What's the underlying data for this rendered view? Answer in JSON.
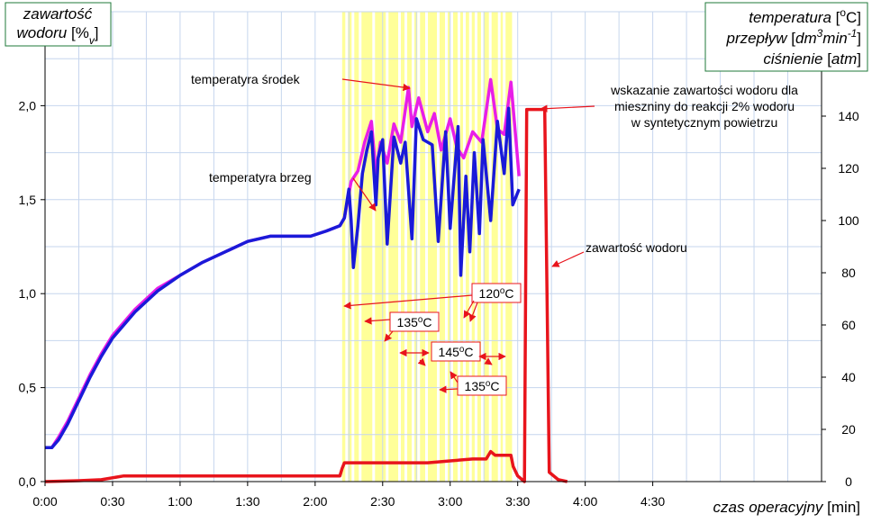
{
  "chart_data": {
    "type": "line",
    "xlim": [
      0,
      345
    ],
    "xticks": [
      {
        "value": 0,
        "label": "0:00"
      },
      {
        "value": 30,
        "label": "0:30"
      },
      {
        "value": 60,
        "label": "1:00"
      },
      {
        "value": 90,
        "label": "1:30"
      },
      {
        "value": 120,
        "label": "2:00"
      },
      {
        "value": 150,
        "label": "2:30"
      },
      {
        "value": 180,
        "label": "3:00"
      },
      {
        "value": 210,
        "label": "3:30"
      },
      {
        "value": 240,
        "label": "4:00"
      },
      {
        "value": 270,
        "label": "4:30"
      }
    ],
    "xminorticks": [
      15,
      45,
      75,
      105,
      135,
      165,
      195,
      225,
      255,
      285,
      300,
      315,
      330,
      345
    ],
    "ylim": [
      0,
      2.5
    ],
    "yticks": [
      {
        "value": 0,
        "label": "0,0"
      },
      {
        "value": 0.5,
        "label": "0,5"
      },
      {
        "value": 1,
        "label": "1,0"
      },
      {
        "value": 1.5,
        "label": "1,5"
      },
      {
        "value": 2,
        "label": "2,0"
      }
    ],
    "yminorticks": [
      0.25,
      0.75,
      1.25,
      1.75,
      2.25,
      2.5
    ],
    "y2lim": [
      0,
      180
    ],
    "y2ticks": [
      0,
      20,
      40,
      60,
      80,
      100,
      120,
      140
    ],
    "grid": true,
    "xlabel": [
      {
        "text": "czas operacyjny "
      },
      {
        "text": "[min]",
        "upright": true
      }
    ],
    "ylabel": [
      [
        {
          "text": "zawartość"
        }
      ],
      [
        {
          "text": "wodoru "
        },
        {
          "text": "[%",
          "upright": true
        },
        {
          "text": "v",
          "shift": "sub"
        },
        {
          "text": "]",
          "upright": true
        }
      ]
    ],
    "y2label": [
      [
        {
          "text": "temperatura "
        },
        {
          "text": "[",
          "upright": true
        },
        {
          "text": "o",
          "shift": "super",
          "upright": true
        },
        {
          "text": "C]",
          "upright": true
        }
      ],
      [
        {
          "text": "przepływ "
        },
        {
          "text": "[",
          "upright": true
        },
        {
          "text": "dm"
        },
        {
          "text": "3",
          "shift": "super"
        },
        {
          "text": "min"
        },
        {
          "text": "-1",
          "shift": "super"
        },
        {
          "text": "]",
          "upright": true
        }
      ],
      [
        {
          "text": "ciśnienie "
        },
        {
          "text": "[",
          "upright": true
        },
        {
          "text": "atm"
        },
        {
          "text": "]",
          "upright": true
        }
      ]
    ],
    "highlight": {
      "x": [
        132,
        207.5
      ],
      "color": "#ffff99",
      "lines": [
        134,
        136.8,
        140,
        146,
        152,
        157.5,
        160.3,
        163.5,
        166,
        169.5,
        174.7,
        178.3,
        180.7,
        183.9,
        186.3,
        189,
        191.5,
        194.3,
        197.8,
        201.8,
        204
      ]
    },
    "series": [
      {
        "name": "temperatyra środek",
        "color": "#e81ee8",
        "axis": "y2",
        "x": [
          0,
          3,
          6,
          10,
          15,
          20,
          25,
          30,
          40,
          50,
          60,
          70,
          80,
          90,
          100,
          110,
          118,
          125,
          131,
          133,
          136,
          139,
          142,
          145,
          147,
          149,
          152,
          155,
          158,
          161.5,
          163,
          166,
          170,
          173,
          176,
          180,
          183,
          186,
          190,
          194,
          198,
          201,
          204,
          207,
          210.6
        ],
        "values": [
          13,
          13,
          17,
          23,
          32,
          41,
          49,
          56,
          66,
          74,
          79,
          84,
          88,
          92,
          94,
          94,
          94,
          96,
          98,
          101,
          115,
          119,
          130,
          138,
          118,
          130,
          122,
          137,
          130,
          151,
          136,
          147,
          134,
          141,
          127,
          139,
          128,
          124,
          134,
          130,
          154,
          135,
          133,
          153,
          117
        ]
      },
      {
        "name": "temperatyra brzeg",
        "color": "#1a1ad8",
        "axis": "y2",
        "x": [
          0,
          3,
          6,
          10,
          15,
          20,
          25,
          30,
          40,
          50,
          60,
          70,
          80,
          90,
          100,
          110,
          118,
          125,
          131,
          133,
          135,
          136,
          137,
          139,
          141,
          143,
          145,
          147,
          148,
          150,
          152,
          155,
          158,
          160,
          163,
          165,
          168,
          172,
          174.7,
          178,
          180,
          183.5,
          184.7,
          187,
          188.7,
          190.7,
          193,
          194.6,
          198,
          201,
          204,
          206,
          207.8,
          210.6
        ],
        "values": [
          13,
          13,
          16,
          22,
          31,
          40,
          48,
          55,
          65,
          73,
          79,
          84,
          88,
          92,
          94,
          94,
          94,
          96,
          98,
          101,
          112,
          100,
          82,
          98,
          118,
          127,
          134,
          106,
          124,
          131,
          91,
          132,
          122,
          130,
          93,
          139,
          131,
          129,
          92,
          134,
          97,
          136,
          79,
          117,
          88,
          126,
          95,
          131,
          100,
          138,
          118,
          143,
          106,
          112
        ]
      },
      {
        "name": "zawartość wodoru",
        "color": "#e8141c",
        "axis": "y",
        "x": [
          0,
          15,
          25,
          35,
          60,
          90,
          120,
          131,
          132,
          133,
          140,
          150,
          160,
          170,
          180,
          190,
          196,
          198,
          200,
          207,
          208,
          210,
          213,
          214,
          216,
          222,
          224,
          228,
          232
        ],
        "values": [
          0,
          0.005,
          0.01,
          0.03,
          0.03,
          0.03,
          0.03,
          0.03,
          0.07,
          0.1,
          0.1,
          0.1,
          0.1,
          0.1,
          0.11,
          0.12,
          0.12,
          0.16,
          0.14,
          0.14,
          0.08,
          0.03,
          0,
          1.98,
          1.98,
          1.98,
          0.05,
          0.01,
          0
        ]
      }
    ],
    "note": [
      "wskazanie zawartości wodoru dla",
      "mieszniny do reakcji 2% wodoru",
      "w syntetycznym powietrzu"
    ],
    "temp_labels": [
      [
        {
          "text": "120"
        },
        {
          "text": "o",
          "shift": "super"
        },
        {
          "text": "C"
        }
      ],
      [
        {
          "text": "135"
        },
        {
          "text": "o",
          "shift": "super"
        },
        {
          "text": "C"
        }
      ],
      [
        {
          "text": "145"
        },
        {
          "text": "o",
          "shift": "super"
        },
        {
          "text": "C"
        }
      ],
      [
        {
          "text": "135"
        },
        {
          "text": "o",
          "shift": "super"
        },
        {
          "text": "C"
        }
      ]
    ]
  }
}
